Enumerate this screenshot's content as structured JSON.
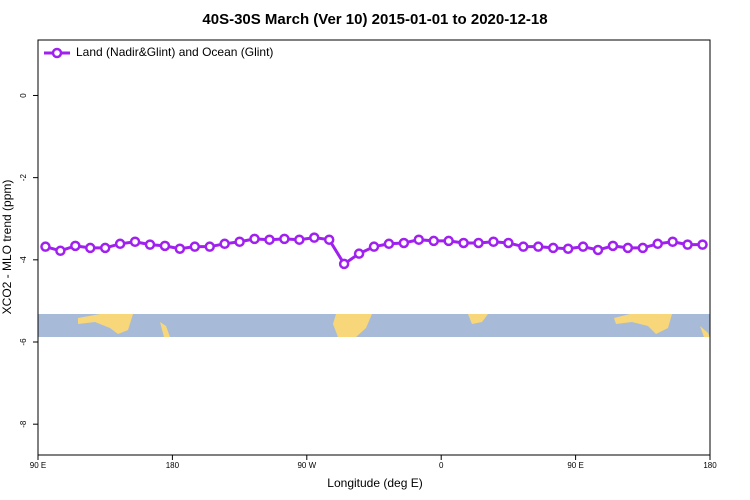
{
  "chart_data": {
    "type": "line",
    "title": "40S-30S March (Ver 10)   2015-01-01 to 2020-12-18",
    "x_label": "Longitude (deg E)",
    "y_label": "XCO2 - MLO trend (ppm)",
    "x": [
      95,
      105,
      115,
      125,
      135,
      145,
      155,
      165,
      175,
      185,
      195,
      205,
      215,
      225,
      235,
      245,
      255,
      265,
      275,
      285,
      295,
      305,
      315,
      325,
      335,
      345,
      355,
      365,
      375,
      385,
      395,
      405,
      415,
      425,
      435,
      445,
      455,
      465,
      475,
      485,
      495,
      505,
      515,
      525,
      535
    ],
    "series": [
      {
        "name": "Land (Nadir&Glint) and Ocean (Glint)",
        "color": "#a020f0",
        "values": [
          -3.68,
          -3.78,
          -3.66,
          -3.71,
          -3.71,
          -3.61,
          -3.56,
          -3.63,
          -3.66,
          -3.73,
          -3.68,
          -3.68,
          -3.61,
          -3.56,
          -3.49,
          -3.51,
          -3.49,
          -3.51,
          -3.46,
          -3.51,
          -4.1,
          -3.85,
          -3.68,
          -3.61,
          -3.59,
          -3.51,
          -3.54,
          -3.54,
          -3.59,
          -3.59,
          -3.56,
          -3.59,
          -3.68,
          -3.68,
          -3.71,
          -3.73,
          -3.68,
          -3.76,
          -3.66,
          -3.71,
          -3.71,
          -3.61,
          -3.56,
          -3.63,
          -3.63
        ]
      }
    ],
    "xlim": [
      90,
      540
    ],
    "xticks": [
      {
        "value": 90,
        "label": "90 E"
      },
      {
        "value": 180,
        "label": "180"
      },
      {
        "value": 270,
        "label": "90 W"
      },
      {
        "value": 360,
        "label": "0"
      },
      {
        "value": 450,
        "label": "90 E"
      },
      {
        "value": 540,
        "label": "180"
      }
    ],
    "ylim": [
      -8.75,
      1.35
    ],
    "yticks": [
      0,
      -2,
      -4,
      -6,
      -8
    ],
    "legend": "top-left"
  }
}
